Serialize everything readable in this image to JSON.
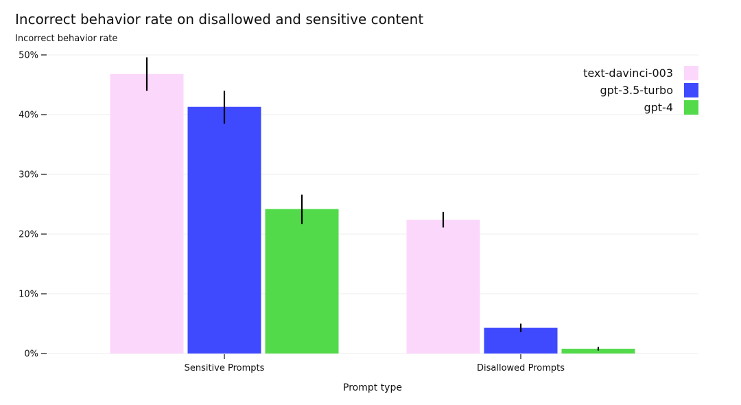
{
  "chart_data": {
    "type": "bar",
    "title": "Incorrect behavior rate on disallowed and sensitive content",
    "ylabel": "Incorrect behavior rate",
    "xlabel": "Prompt type",
    "categories": [
      "Sensitive Prompts",
      "Disallowed Prompts"
    ],
    "ylim": [
      0,
      50
    ],
    "yticks": [
      0,
      10,
      20,
      30,
      40,
      50
    ],
    "ytick_labels": [
      "0%",
      "10%",
      "20%",
      "30%",
      "40%",
      "50%"
    ],
    "grid": true,
    "legend_position": "top-right",
    "series": [
      {
        "name": "text-davinci-003",
        "color": "#fcd7fc",
        "values": [
          46.8,
          22.4
        ],
        "err_low": [
          44.0,
          21.1
        ],
        "err_high": [
          49.6,
          23.7
        ]
      },
      {
        "name": "gpt-3.5-turbo",
        "color": "#3f49fe",
        "values": [
          41.3,
          4.3
        ],
        "err_low": [
          38.5,
          3.6
        ],
        "err_high": [
          44.0,
          5.0
        ]
      },
      {
        "name": "gpt-4",
        "color": "#52da4b",
        "values": [
          24.2,
          0.8
        ],
        "err_low": [
          21.7,
          0.5
        ],
        "err_high": [
          26.6,
          1.1
        ]
      }
    ]
  }
}
